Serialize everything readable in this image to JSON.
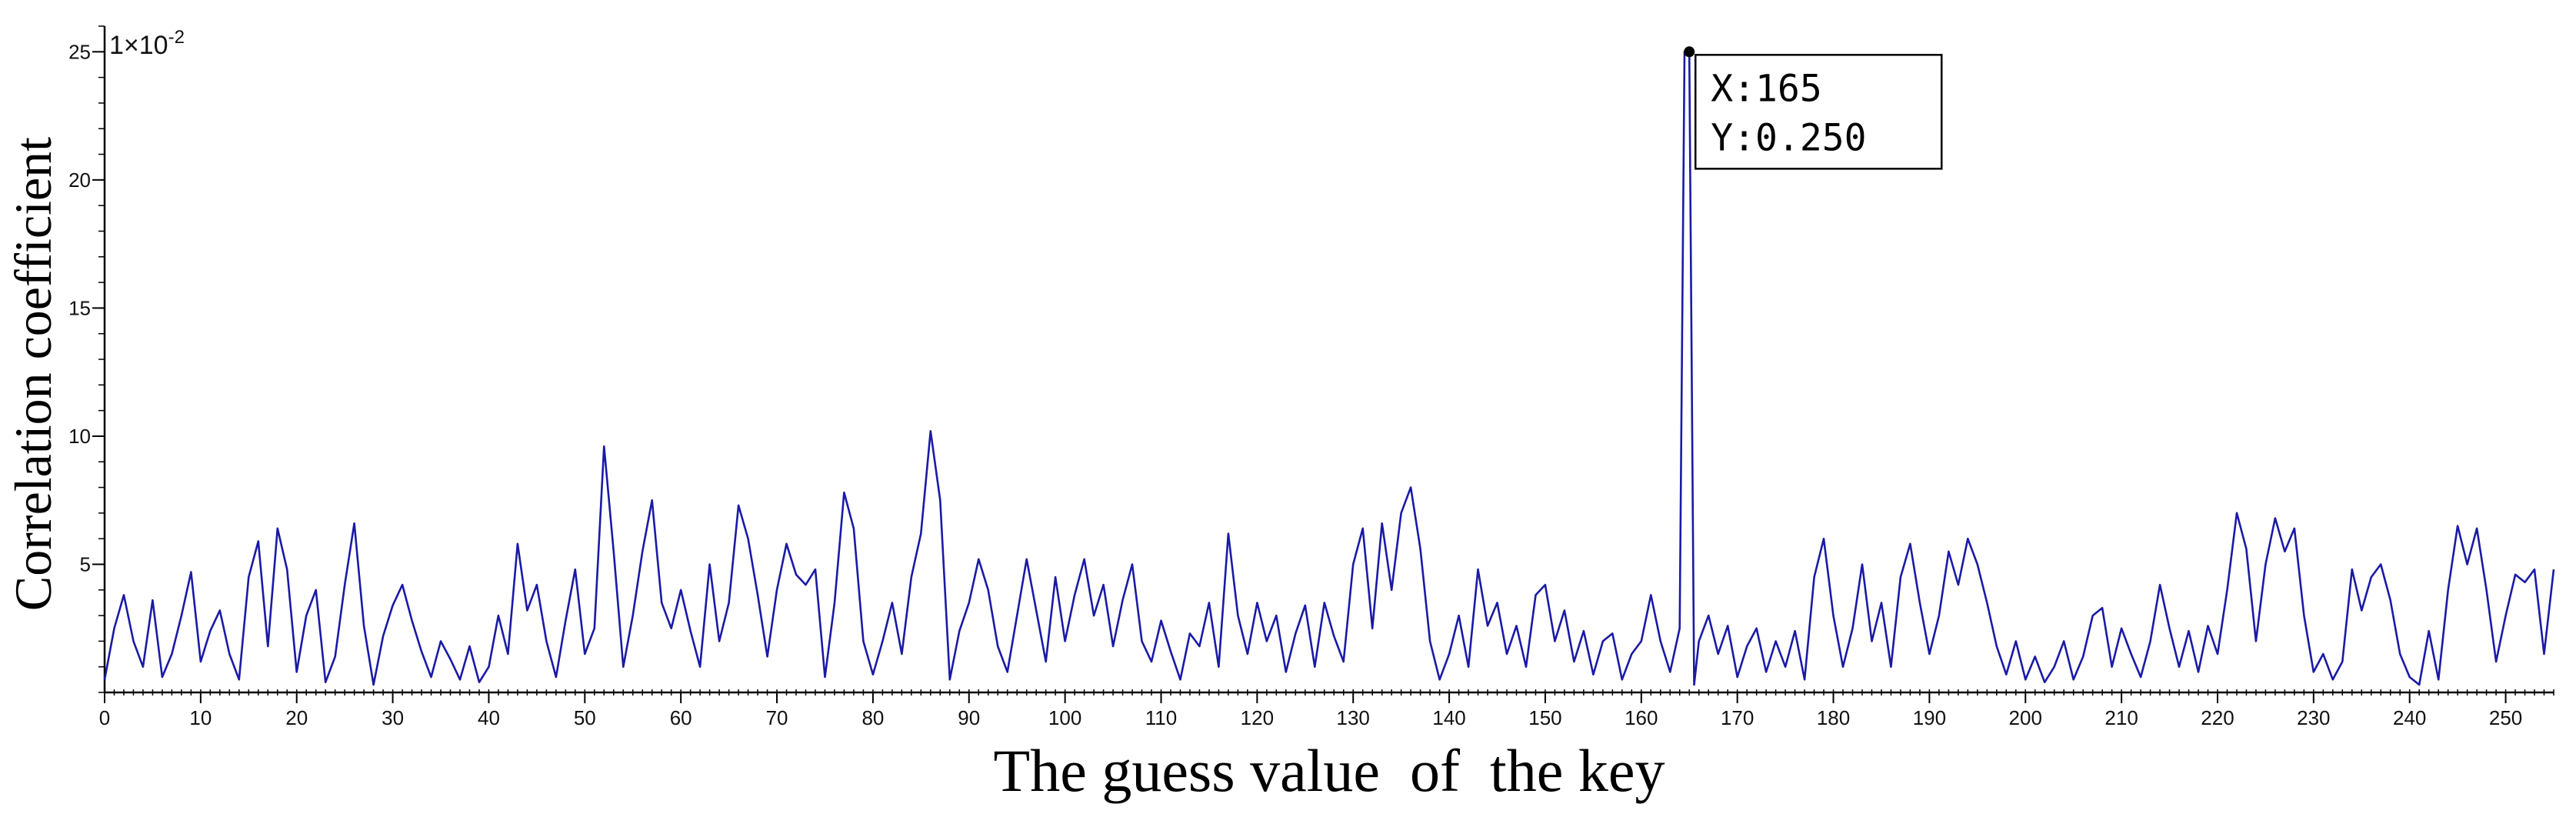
{
  "chart_data": {
    "type": "line",
    "title": "",
    "xlabel": "The guess value  of  the key",
    "ylabel": "Correlation coefficient",
    "y_scale_note": "1×10",
    "y_scale_exp": "-2",
    "xlim": [
      0,
      255
    ],
    "ylim": [
      0,
      26
    ],
    "x_ticks": [
      0,
      10,
      20,
      30,
      40,
      50,
      60,
      70,
      80,
      90,
      100,
      110,
      120,
      130,
      140,
      150,
      160,
      170,
      180,
      190,
      200,
      210,
      220,
      230,
      240,
      250
    ],
    "y_ticks": [
      5,
      10,
      15,
      20,
      25
    ],
    "grid": false,
    "legend": "none",
    "line_color": "#1a1aa6",
    "series": [
      {
        "points": [
          [
            0,
            0.5
          ],
          [
            1,
            2.5
          ],
          [
            2,
            3.8
          ],
          [
            3,
            2.0
          ],
          [
            4,
            1.0
          ],
          [
            5,
            3.6
          ],
          [
            6,
            0.6
          ],
          [
            7,
            1.5
          ],
          [
            8,
            3.0
          ],
          [
            9,
            4.7
          ],
          [
            10,
            1.2
          ],
          [
            11,
            2.4
          ],
          [
            12,
            3.2
          ],
          [
            13,
            1.5
          ],
          [
            14,
            0.5
          ],
          [
            15,
            4.5
          ],
          [
            16,
            5.9
          ],
          [
            17,
            1.8
          ],
          [
            18,
            6.4
          ],
          [
            19,
            4.8
          ],
          [
            20,
            0.8
          ],
          [
            21,
            3.0
          ],
          [
            22,
            4.0
          ],
          [
            23,
            0.4
          ],
          [
            24,
            1.4
          ],
          [
            25,
            4.2
          ],
          [
            26,
            6.6
          ],
          [
            27,
            2.6
          ],
          [
            28,
            0.3
          ],
          [
            29,
            2.2
          ],
          [
            30,
            3.4
          ],
          [
            31,
            4.2
          ],
          [
            32,
            2.8
          ],
          [
            33,
            1.6
          ],
          [
            34,
            0.6
          ],
          [
            35,
            2.0
          ],
          [
            36,
            1.3
          ],
          [
            37,
            0.5
          ],
          [
            38,
            1.8
          ],
          [
            39,
            0.4
          ],
          [
            40,
            1.0
          ],
          [
            41,
            3.0
          ],
          [
            42,
            1.5
          ],
          [
            43,
            5.8
          ],
          [
            44,
            3.2
          ],
          [
            45,
            4.2
          ],
          [
            46,
            2.0
          ],
          [
            47,
            0.6
          ],
          [
            48,
            2.8
          ],
          [
            49,
            4.8
          ],
          [
            50,
            1.5
          ],
          [
            51,
            2.5
          ],
          [
            52,
            9.6
          ],
          [
            53,
            5.5
          ],
          [
            54,
            1.0
          ],
          [
            55,
            3.0
          ],
          [
            56,
            5.5
          ],
          [
            57,
            7.5
          ],
          [
            58,
            3.5
          ],
          [
            59,
            2.5
          ],
          [
            60,
            4.0
          ],
          [
            61,
            2.4
          ],
          [
            62,
            1.0
          ],
          [
            63,
            5.0
          ],
          [
            64,
            2.0
          ],
          [
            65,
            3.5
          ],
          [
            66,
            7.3
          ],
          [
            67,
            6.0
          ],
          [
            68,
            3.8
          ],
          [
            69,
            1.4
          ],
          [
            70,
            4.0
          ],
          [
            71,
            5.8
          ],
          [
            72,
            4.6
          ],
          [
            73,
            4.2
          ],
          [
            74,
            4.8
          ],
          [
            75,
            0.6
          ],
          [
            76,
            3.5
          ],
          [
            77,
            7.8
          ],
          [
            78,
            6.4
          ],
          [
            79,
            2.0
          ],
          [
            80,
            0.7
          ],
          [
            81,
            2.0
          ],
          [
            82,
            3.5
          ],
          [
            83,
            1.5
          ],
          [
            84,
            4.5
          ],
          [
            85,
            6.2
          ],
          [
            86,
            10.2
          ],
          [
            87,
            7.5
          ],
          [
            88,
            0.5
          ],
          [
            89,
            2.4
          ],
          [
            90,
            3.5
          ],
          [
            91,
            5.2
          ],
          [
            92,
            4.0
          ],
          [
            93,
            1.8
          ],
          [
            94,
            0.8
          ],
          [
            95,
            3.0
          ],
          [
            96,
            5.2
          ],
          [
            97,
            3.2
          ],
          [
            98,
            1.2
          ],
          [
            99,
            4.5
          ],
          [
            100,
            2.0
          ],
          [
            101,
            3.8
          ],
          [
            102,
            5.2
          ],
          [
            103,
            3.0
          ],
          [
            104,
            4.2
          ],
          [
            105,
            1.8
          ],
          [
            106,
            3.6
          ],
          [
            107,
            5.0
          ],
          [
            108,
            2.0
          ],
          [
            109,
            1.2
          ],
          [
            110,
            2.8
          ],
          [
            111,
            1.6
          ],
          [
            112,
            0.5
          ],
          [
            113,
            2.3
          ],
          [
            114,
            1.8
          ],
          [
            115,
            3.5
          ],
          [
            116,
            1.0
          ],
          [
            117,
            6.2
          ],
          [
            118,
            3.0
          ],
          [
            119,
            1.5
          ],
          [
            120,
            3.5
          ],
          [
            121,
            2.0
          ],
          [
            122,
            3.0
          ],
          [
            123,
            0.8
          ],
          [
            124,
            2.3
          ],
          [
            125,
            3.4
          ],
          [
            126,
            1.0
          ],
          [
            127,
            3.5
          ],
          [
            128,
            2.2
          ],
          [
            129,
            1.2
          ],
          [
            130,
            5.0
          ],
          [
            131,
            6.4
          ],
          [
            132,
            2.5
          ],
          [
            133,
            6.6
          ],
          [
            134,
            4.0
          ],
          [
            135,
            7.0
          ],
          [
            136,
            8.0
          ],
          [
            137,
            5.6
          ],
          [
            138,
            2.0
          ],
          [
            139,
            0.5
          ],
          [
            140,
            1.5
          ],
          [
            141,
            3.0
          ],
          [
            142,
            1.0
          ],
          [
            143,
            4.8
          ],
          [
            144,
            2.6
          ],
          [
            145,
            3.5
          ],
          [
            146,
            1.5
          ],
          [
            147,
            2.6
          ],
          [
            148,
            1.0
          ],
          [
            149,
            3.8
          ],
          [
            150,
            4.2
          ],
          [
            151,
            2.0
          ],
          [
            152,
            3.2
          ],
          [
            153,
            1.2
          ],
          [
            154,
            2.4
          ],
          [
            155,
            0.7
          ],
          [
            156,
            2.0
          ],
          [
            157,
            2.3
          ],
          [
            158,
            0.5
          ],
          [
            159,
            1.5
          ],
          [
            160,
            2.0
          ],
          [
            161,
            3.8
          ],
          [
            162,
            2.0
          ],
          [
            163,
            0.8
          ],
          [
            164,
            2.5
          ],
          [
            164.5,
            25.0
          ],
          [
            165,
            25.0
          ],
          [
            165.5,
            0.3
          ],
          [
            166,
            2.0
          ],
          [
            167,
            3.0
          ],
          [
            168,
            1.5
          ],
          [
            169,
            2.6
          ],
          [
            170,
            0.6
          ],
          [
            171,
            1.8
          ],
          [
            172,
            2.5
          ],
          [
            173,
            0.8
          ],
          [
            174,
            2.0
          ],
          [
            175,
            1.0
          ],
          [
            176,
            2.4
          ],
          [
            177,
            0.5
          ],
          [
            178,
            4.5
          ],
          [
            179,
            6.0
          ],
          [
            180,
            3.0
          ],
          [
            181,
            1.0
          ],
          [
            182,
            2.5
          ],
          [
            183,
            5.0
          ],
          [
            184,
            2.0
          ],
          [
            185,
            3.5
          ],
          [
            186,
            1.0
          ],
          [
            187,
            4.5
          ],
          [
            188,
            5.8
          ],
          [
            189,
            3.5
          ],
          [
            190,
            1.5
          ],
          [
            191,
            3.0
          ],
          [
            192,
            5.5
          ],
          [
            193,
            4.2
          ],
          [
            194,
            6.0
          ],
          [
            195,
            5.0
          ],
          [
            196,
            3.5
          ],
          [
            197,
            1.8
          ],
          [
            198,
            0.7
          ],
          [
            199,
            2.0
          ],
          [
            200,
            0.5
          ],
          [
            201,
            1.4
          ],
          [
            202,
            0.4
          ],
          [
            203,
            1.0
          ],
          [
            204,
            2.0
          ],
          [
            205,
            0.5
          ],
          [
            206,
            1.4
          ],
          [
            207,
            3.0
          ],
          [
            208,
            3.3
          ],
          [
            209,
            1.0
          ],
          [
            210,
            2.5
          ],
          [
            211,
            1.5
          ],
          [
            212,
            0.6
          ],
          [
            213,
            2.0
          ],
          [
            214,
            4.2
          ],
          [
            215,
            2.5
          ],
          [
            216,
            1.0
          ],
          [
            217,
            2.4
          ],
          [
            218,
            0.8
          ],
          [
            219,
            2.6
          ],
          [
            220,
            1.5
          ],
          [
            221,
            4.0
          ],
          [
            222,
            7.0
          ],
          [
            223,
            5.6
          ],
          [
            224,
            2.0
          ],
          [
            225,
            5.0
          ],
          [
            226,
            6.8
          ],
          [
            227,
            5.5
          ],
          [
            228,
            6.4
          ],
          [
            229,
            3.0
          ],
          [
            230,
            0.8
          ],
          [
            231,
            1.5
          ],
          [
            232,
            0.5
          ],
          [
            233,
            1.2
          ],
          [
            234,
            4.8
          ],
          [
            235,
            3.2
          ],
          [
            236,
            4.5
          ],
          [
            237,
            5.0
          ],
          [
            238,
            3.6
          ],
          [
            239,
            1.5
          ],
          [
            240,
            0.6
          ],
          [
            241,
            0.3
          ],
          [
            242,
            2.4
          ],
          [
            243,
            0.5
          ],
          [
            244,
            4.0
          ],
          [
            245,
            6.5
          ],
          [
            246,
            5.0
          ],
          [
            247,
            6.4
          ],
          [
            248,
            4.0
          ],
          [
            249,
            1.2
          ],
          [
            250,
            3.0
          ],
          [
            251,
            4.6
          ],
          [
            252,
            4.3
          ],
          [
            253,
            4.8
          ],
          [
            254,
            1.5
          ],
          [
            255,
            4.8
          ]
        ]
      }
    ],
    "annotation": {
      "x": 165,
      "y": 25.0,
      "label_x": "X:165",
      "label_y": "Y:0.250"
    }
  }
}
